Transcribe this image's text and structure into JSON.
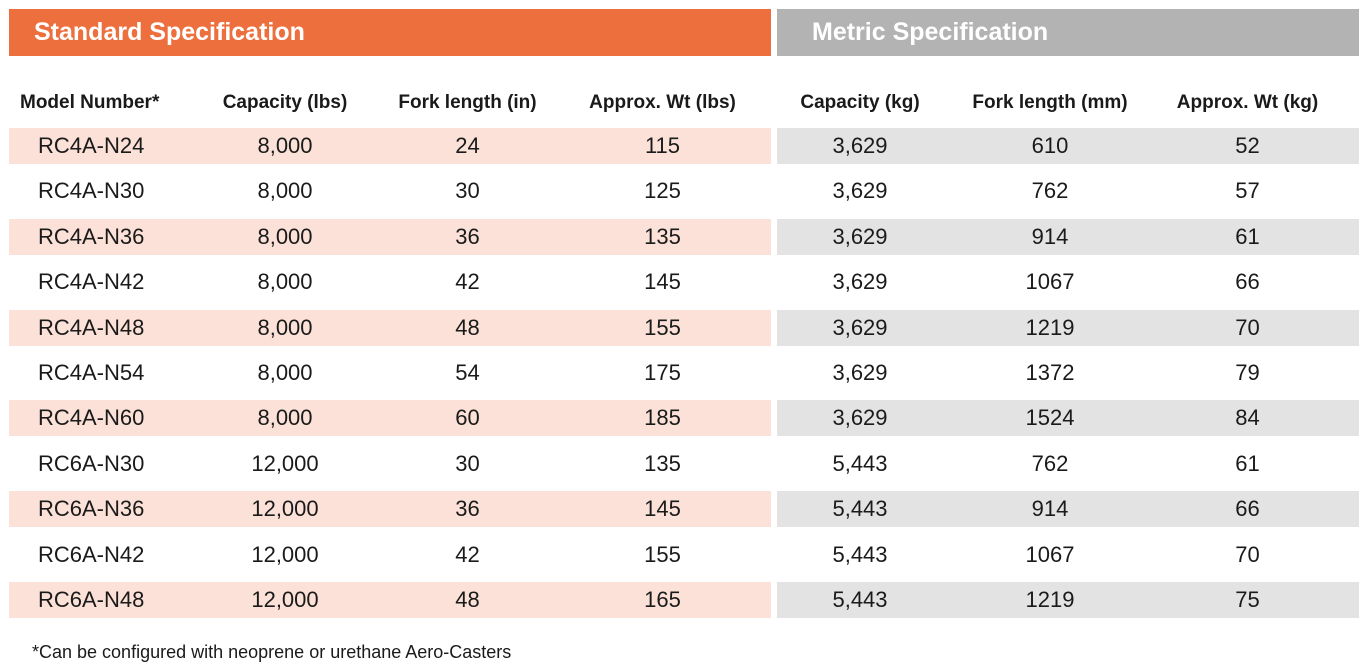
{
  "banners": {
    "standard": "Standard Specification",
    "metric": "Metric Specification"
  },
  "colors": {
    "standard_banner": "#ed6f3e",
    "metric_banner": "#b3b3b3",
    "standard_row_shade": "#fbe1d7",
    "metric_row_shade": "#e3e3e3"
  },
  "headers": {
    "model": "Model Number*",
    "capacity_lbs": "Capacity (lbs)",
    "fork_in": "Fork length (in)",
    "wt_lbs": "Approx. Wt (lbs)",
    "capacity_kg": "Capacity (kg)",
    "fork_mm": "Fork length (mm)",
    "wt_kg": "Approx. Wt (kg)"
  },
  "rows": [
    {
      "model": "RC4A-N24",
      "capacity_lbs": "8,000",
      "fork_in": "24",
      "wt_lbs": "115",
      "capacity_kg": "3,629",
      "fork_mm": "610",
      "wt_kg": "52"
    },
    {
      "model": "RC4A-N30",
      "capacity_lbs": "8,000",
      "fork_in": "30",
      "wt_lbs": "125",
      "capacity_kg": "3,629",
      "fork_mm": "762",
      "wt_kg": "57"
    },
    {
      "model": "RC4A-N36",
      "capacity_lbs": "8,000",
      "fork_in": "36",
      "wt_lbs": "135",
      "capacity_kg": "3,629",
      "fork_mm": "914",
      "wt_kg": "61"
    },
    {
      "model": "RC4A-N42",
      "capacity_lbs": "8,000",
      "fork_in": "42",
      "wt_lbs": "145",
      "capacity_kg": "3,629",
      "fork_mm": "1067",
      "wt_kg": "66"
    },
    {
      "model": "RC4A-N48",
      "capacity_lbs": "8,000",
      "fork_in": "48",
      "wt_lbs": "155",
      "capacity_kg": "3,629",
      "fork_mm": "1219",
      "wt_kg": "70"
    },
    {
      "model": "RC4A-N54",
      "capacity_lbs": "8,000",
      "fork_in": "54",
      "wt_lbs": "175",
      "capacity_kg": "3,629",
      "fork_mm": "1372",
      "wt_kg": "79"
    },
    {
      "model": "RC4A-N60",
      "capacity_lbs": "8,000",
      "fork_in": "60",
      "wt_lbs": "185",
      "capacity_kg": "3,629",
      "fork_mm": "1524",
      "wt_kg": "84"
    },
    {
      "model": "RC6A-N30",
      "capacity_lbs": "12,000",
      "fork_in": "30",
      "wt_lbs": "135",
      "capacity_kg": "5,443",
      "fork_mm": "762",
      "wt_kg": "61"
    },
    {
      "model": "RC6A-N36",
      "capacity_lbs": "12,000",
      "fork_in": "36",
      "wt_lbs": "145",
      "capacity_kg": "5,443",
      "fork_mm": "914",
      "wt_kg": "66"
    },
    {
      "model": "RC6A-N42",
      "capacity_lbs": "12,000",
      "fork_in": "42",
      "wt_lbs": "155",
      "capacity_kg": "5,443",
      "fork_mm": "1067",
      "wt_kg": "70"
    },
    {
      "model": "RC6A-N48",
      "capacity_lbs": "12,000",
      "fork_in": "48",
      "wt_lbs": "165",
      "capacity_kg": "5,443",
      "fork_mm": "1219",
      "wt_kg": "75"
    }
  ],
  "footnote": "*Can be configured with neoprene or urethane Aero-Casters"
}
